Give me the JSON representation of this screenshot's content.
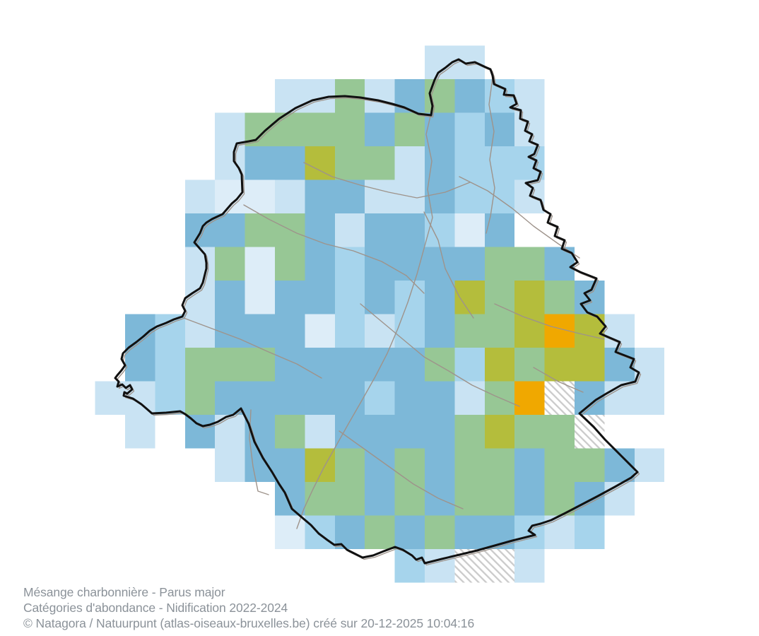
{
  "caption": {
    "species_line": "Mésange charbonnière - Parus major",
    "subtitle_line": "Catégories d'abondance - Nidification 2022-2024",
    "credit_line": "© Natagora / Natuurpunt (atlas-oiseaux-bruxelles.be) créé sur 20-12-2025 10:04:16"
  },
  "palette": {
    "very_pale_blue": "#ddedf8",
    "pale_blue": "#c9e3f3",
    "light_blue": "#a6d4ec",
    "medium_blue": "#7db8d8",
    "green": "#97c795",
    "olive_green": "#b4bd3c",
    "orange": "#f0a800",
    "hatch_stripe": "#cbcbcb",
    "region_boundary": "#111111",
    "commune_line": "#9e938b",
    "caption_text": "#8b9299",
    "background": "#ffffff"
  },
  "chart_data": {
    "type": "heatmap",
    "title": "Mésange charbonnière - Parus major",
    "subtitle": "Catégories d'abondance - Nidification 2022-2024",
    "legend_position": "none",
    "grid_note": "Abundance category per 1-km grid square over the Brussels region; codes: . = no square, 1 = very pale blue (lowest), 2 = pale blue, 3 = light blue, M = medium blue, G = green, O = olive green, R = orange (highest), H = hatched (surveyed, not retained)",
    "codes": {
      "1": "very_pale_blue",
      "2": "pale_blue",
      "3": "light_blue",
      "M": "medium_blue",
      "G": "green",
      "O": "olive_green",
      "R": "orange",
      "H": "hatched"
    },
    "rows": [
      "...........22......",
      "......22G2MGM32....",
      "....2GGGGMGM3M2....",
      "....2MMOGG2M333....",
      "...2112MM22M332....",
      "...MMGGM2MM31M.....",
      "...2G1GM3MMMMGGM...",
      "...2M1MM3M3MOGOGM..",
      ".M32MMM1323MGGORO2.",
      ".M3GGGMMMMMG3OGOOM2",
      "223GMMMMM3MM2GRHM22",
      ".2.M2MG2MMMMGOGGH..",
      "....2MMOGMGMGGMGGM2",
      "......MGGMGMGGMGM2.",
      "......13MGMGMM323..",
      "..........32HH2...."
    ]
  }
}
